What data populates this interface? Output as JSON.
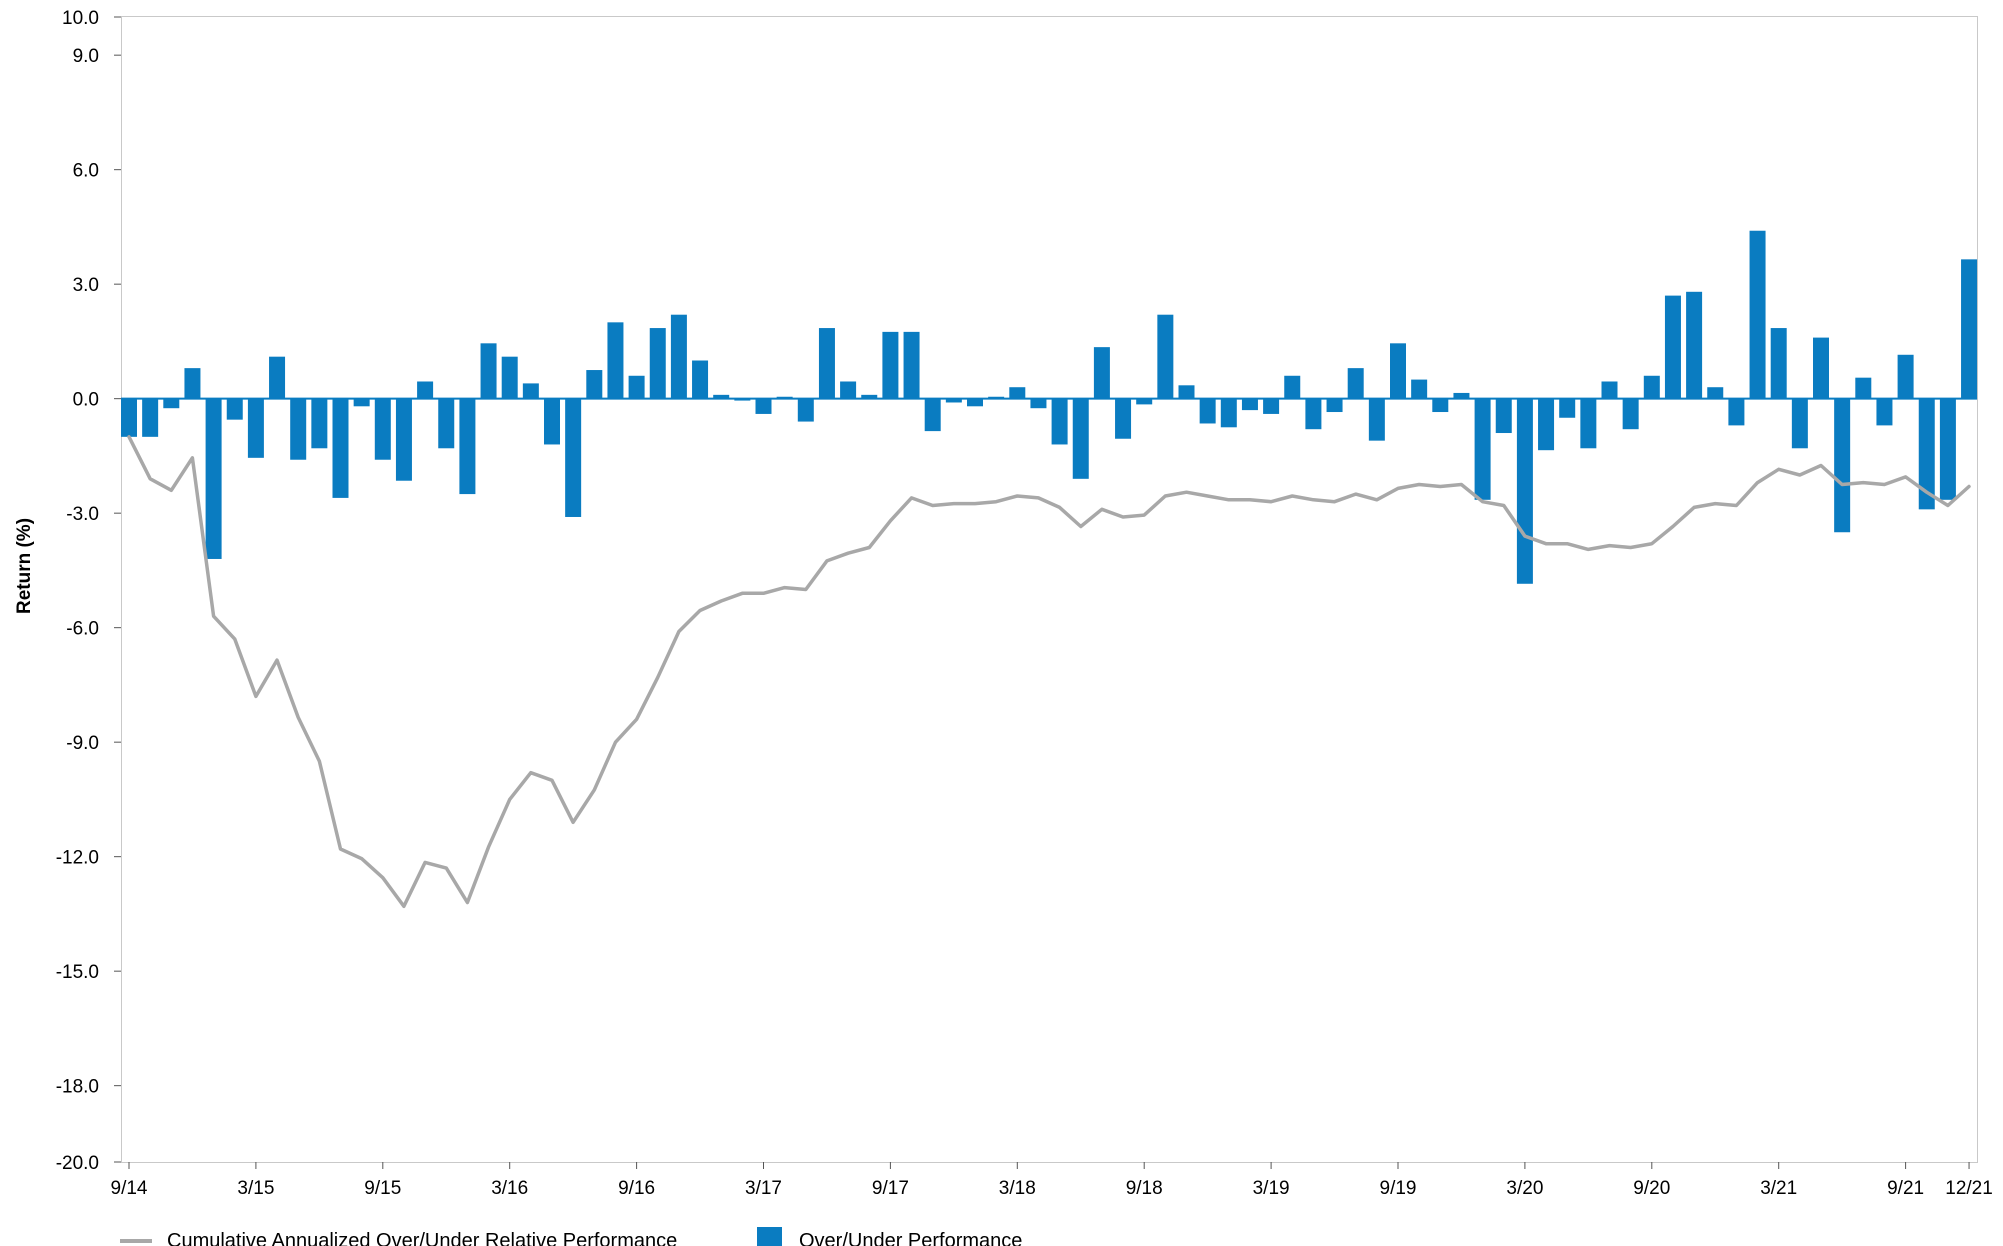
{
  "chart_data": {
    "type": "bar",
    "ylabel": "Return (%)",
    "ylim": [
      -20.0,
      10.0
    ],
    "yticks": [
      10.0,
      9.0,
      6.0,
      3.0,
      0.0,
      -3.0,
      -6.0,
      -9.0,
      -12.0,
      -15.0,
      -18.0,
      -20.0
    ],
    "x_tick_labels": [
      "9/14",
      "3/15",
      "9/15",
      "3/16",
      "9/16",
      "3/17",
      "9/17",
      "3/18",
      "9/18",
      "3/19",
      "9/19",
      "3/20",
      "9/20",
      "3/21",
      "9/21",
      "12/21"
    ],
    "x_tick_months": [
      0,
      6,
      12,
      18,
      24,
      30,
      36,
      42,
      48,
      54,
      60,
      66,
      72,
      78,
      84,
      87
    ],
    "legend_position": "bottom-left",
    "series": [
      {
        "name": "Over/Under Performance",
        "kind": "bar",
        "color": "#0a7cc1",
        "values": [
          -1.0,
          -1.0,
          -0.25,
          0.8,
          -4.2,
          -0.55,
          -1.55,
          1.1,
          -1.6,
          -1.3,
          -2.6,
          -0.2,
          -1.6,
          -2.15,
          0.45,
          -1.3,
          -2.5,
          1.45,
          1.1,
          0.4,
          -1.2,
          -3.1,
          0.75,
          2.0,
          0.6,
          1.85,
          2.2,
          1.0,
          0.1,
          -0.05,
          -0.4,
          0.05,
          -0.6,
          1.85,
          0.45,
          0.1,
          1.75,
          1.75,
          -0.85,
          -0.1,
          -0.2,
          0.05,
          0.3,
          -0.25,
          -1.2,
          -2.1,
          1.35,
          -1.05,
          -0.15,
          2.2,
          0.35,
          -0.65,
          -0.75,
          -0.3,
          -0.4,
          0.6,
          -0.8,
          -0.35,
          0.8,
          -1.1,
          1.45,
          0.5,
          -0.35,
          0.15,
          -2.65,
          -0.9,
          -4.85,
          -1.35,
          -0.5,
          -1.3,
          0.45,
          -0.8,
          0.6,
          2.7,
          2.8,
          0.3,
          -0.7,
          4.4,
          1.85,
          -1.3,
          1.6,
          -3.5,
          0.55,
          -0.7,
          1.15,
          -2.9,
          -2.65,
          3.65
        ]
      },
      {
        "name": "Cumulative Annualized Over/Under Relative Performance",
        "kind": "line",
        "color": "#a8a8a8",
        "values": [
          -1.0,
          -2.1,
          -2.4,
          -1.55,
          -5.7,
          -6.3,
          -7.8,
          -6.85,
          -8.35,
          -9.5,
          -11.8,
          -12.05,
          -12.55,
          -13.3,
          -12.15,
          -12.3,
          -13.2,
          -11.75,
          -10.5,
          -9.8,
          -10.0,
          -11.1,
          -10.25,
          -9.0,
          -8.4,
          -7.3,
          -6.1,
          -5.55,
          -5.3,
          -5.1,
          -5.1,
          -4.95,
          -5.0,
          -4.25,
          -4.05,
          -3.9,
          -3.2,
          -2.6,
          -2.8,
          -2.75,
          -2.75,
          -2.7,
          -2.55,
          -2.6,
          -2.85,
          -3.35,
          -2.9,
          -3.1,
          -3.05,
          -2.55,
          -2.45,
          -2.55,
          -2.65,
          -2.65,
          -2.7,
          -2.55,
          -2.65,
          -2.7,
          -2.5,
          -2.65,
          -2.35,
          -2.25,
          -2.3,
          -2.25,
          -2.7,
          -2.8,
          -3.6,
          -3.8,
          -3.8,
          -3.95,
          -3.85,
          -3.9,
          -3.8,
          -3.35,
          -2.85,
          -2.75,
          -2.8,
          -2.2,
          -1.85,
          -2.0,
          -1.75,
          -2.25,
          -2.2,
          -2.25,
          -2.05,
          -2.45,
          -2.8,
          -2.3
        ]
      }
    ]
  }
}
